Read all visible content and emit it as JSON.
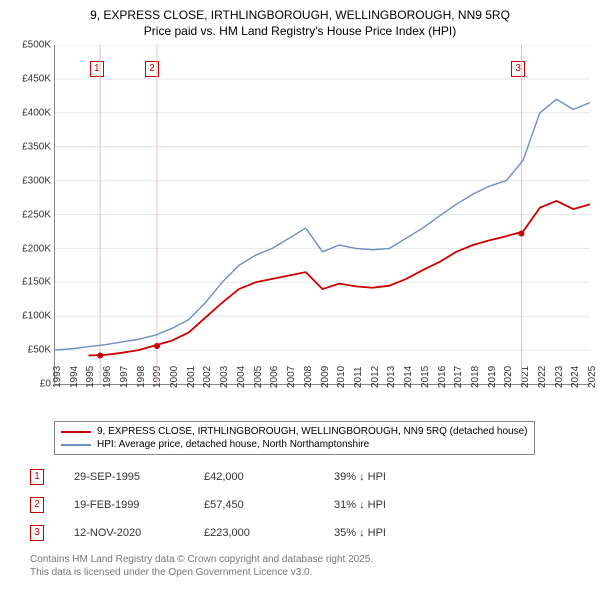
{
  "title_line1": "9, EXPRESS CLOSE, IRTHLINGBOROUGH, WELLINGBOROUGH, NN9 5RQ",
  "title_line2": "Price paid vs. HM Land Registry's House Price Index (HPI)",
  "chart": {
    "type": "line",
    "x_years": [
      1993,
      1994,
      1995,
      1996,
      1997,
      1998,
      1999,
      2000,
      2001,
      2002,
      2003,
      2004,
      2005,
      2006,
      2007,
      2008,
      2009,
      2010,
      2011,
      2012,
      2013,
      2014,
      2015,
      2016,
      2017,
      2018,
      2019,
      2020,
      2021,
      2022,
      2023,
      2024,
      2025
    ],
    "ylim": [
      0,
      500000
    ],
    "ytick_step": 50000,
    "y_prefix": "£",
    "y_suffix_k": "K",
    "background": "#ffffff",
    "grid_color": "#e6e6e6",
    "axis_color": "#888888",
    "series": {
      "hpi": {
        "color": "#6a8fc5",
        "width": 1.4,
        "values": [
          50000,
          52000,
          55000,
          58000,
          62000,
          66000,
          72000,
          82000,
          95000,
          120000,
          150000,
          175000,
          190000,
          200000,
          215000,
          230000,
          195000,
          205000,
          200000,
          198000,
          200000,
          215000,
          230000,
          248000,
          265000,
          280000,
          292000,
          300000,
          330000,
          400000,
          420000,
          405000,
          415000
        ]
      },
      "paid": {
        "color": "#cc0000",
        "width": 1.8,
        "start_index": 2,
        "values": [
          42000,
          43000,
          46000,
          50000,
          57000,
          64000,
          76000,
          98000,
          120000,
          140000,
          150000,
          155000,
          160000,
          165000,
          140000,
          148000,
          144000,
          142000,
          145000,
          155000,
          168000,
          180000,
          195000,
          205000,
          212000,
          218000,
          225000,
          260000,
          270000,
          258000,
          265000
        ]
      }
    },
    "markers": [
      {
        "num": "1",
        "year": 1995.7,
        "y": 42000,
        "box_year": 1995.5,
        "box_y": 465000
      },
      {
        "num": "2",
        "year": 1999.1,
        "y": 56000,
        "box_year": 1998.8,
        "box_y": 465000
      },
      {
        "num": "3",
        "year": 2020.9,
        "y": 222000,
        "box_year": 2020.7,
        "box_y": 465000
      }
    ],
    "vline_color": "#e0c0c0"
  },
  "legend": {
    "paid": "9, EXPRESS CLOSE, IRTHLINGBOROUGH, WELLINGBOROUGH, NN9 5RQ (detached house)",
    "hpi": "HPI: Average price, detached house, North Northamptonshire"
  },
  "sales": [
    {
      "num": "1",
      "date": "29-SEP-1995",
      "price": "£42,000",
      "diff": "39% ↓ HPI"
    },
    {
      "num": "2",
      "date": "19-FEB-1999",
      "price": "£57,450",
      "diff": "31% ↓ HPI"
    },
    {
      "num": "3",
      "date": "12-NOV-2020",
      "price": "£223,000",
      "diff": "35% ↓ HPI"
    }
  ],
  "footnote_l1": "Contains HM Land Registry data © Crown copyright and database right 2025.",
  "footnote_l2": "This data is licensed under the Open Government Licence v3.0."
}
